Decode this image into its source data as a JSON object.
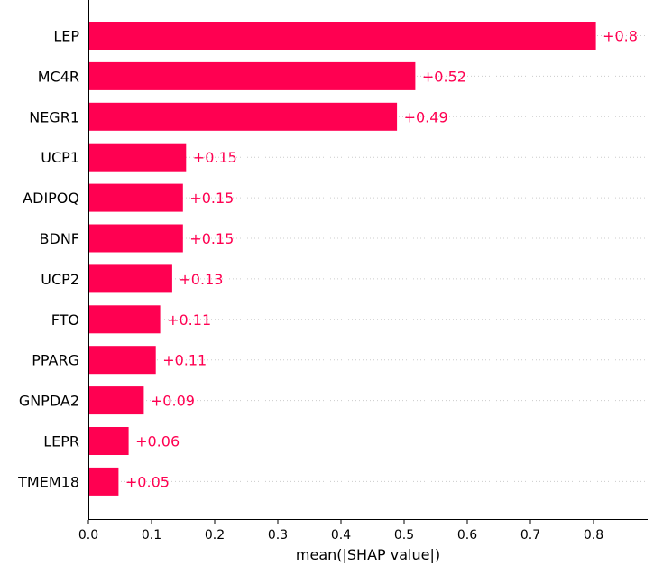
{
  "chart_data": {
    "type": "bar",
    "orientation": "horizontal",
    "categories": [
      "LEP",
      "MC4R",
      "NEGR1",
      "UCP1",
      "ADIPOQ",
      "BDNF",
      "UCP2",
      "FTO",
      "PPARG",
      "GNPDA2",
      "LEPR",
      "TMEM18"
    ],
    "values": [
      0.803,
      0.517,
      0.488,
      0.154,
      0.149,
      0.149,
      0.132,
      0.113,
      0.106,
      0.087,
      0.063,
      0.047
    ],
    "value_labels": [
      "+0.8",
      "+0.52",
      "+0.49",
      "+0.15",
      "+0.15",
      "+0.15",
      "+0.13",
      "+0.11",
      "+0.11",
      "+0.09",
      "+0.06",
      "+0.05"
    ],
    "xticks": [
      "0.0",
      "0.1",
      "0.2",
      "0.3",
      "0.4",
      "0.5",
      "0.6",
      "0.7",
      "0.8"
    ],
    "xlabel": "mean(|SHAP value|)",
    "ylabel": "",
    "title": "",
    "xlim": [
      0,
      0.887
    ],
    "grid": "horizontal dotted",
    "colors": {
      "bar": "#ff0051",
      "label": "#ff0051",
      "grid": "#cccccc",
      "axis": "#000000"
    }
  }
}
